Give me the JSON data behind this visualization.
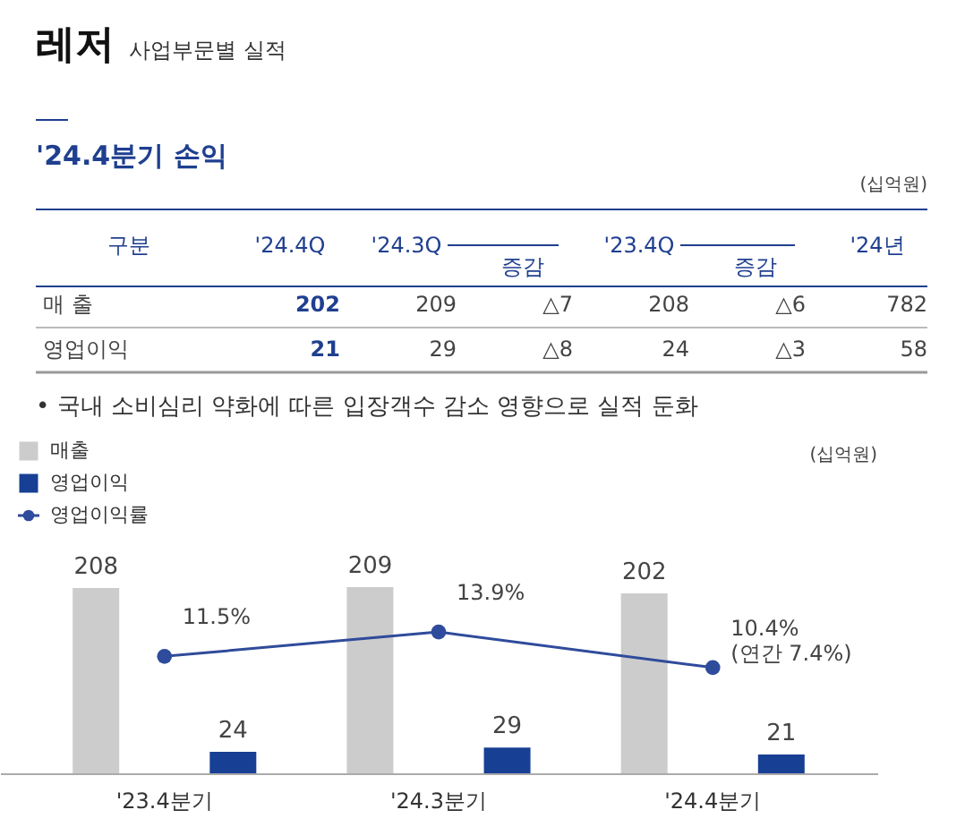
{
  "chart_data": [
    {
      "type": "other",
      "title": "레저",
      "subtitle": "사업부문별 실적",
      "annotations": [
        "'24.4분기 손익",
        "(십억원)",
        "구분",
        "'24.4Q",
        "'24.3Q",
        "증감",
        "'23.4Q",
        "증감",
        "'24년",
        "매   출",
        "202",
        "209",
        "△7",
        "208",
        "△6",
        "782",
        "영업이익",
        "21",
        "29",
        "△8",
        "24",
        "△3",
        "58",
        "• 국내 소비심리 약화에 따른 입장객수 감소 영향으로 실적 둔화"
      ]
    },
    {
      "type": "bar",
      "categories": [
        "'23.4분기",
        "'24.3분기",
        "'24.4분기"
      ],
      "series": [
        {
          "name": "매출",
          "color": "#cccccc",
          "values": [
            208,
            209,
            202
          ]
        },
        {
          "name": "영업이익",
          "color": "#173f94",
          "values": [
            24,
            29,
            21
          ]
        },
        {
          "name": "영업이익률",
          "type": "line",
          "axis": "y2",
          "color": "#2f4b9b",
          "values": [
            11.5,
            13.9,
            10.4
          ],
          "value_labels": [
            "11.5%",
            "13.9%",
            "10.4%\n(연간 7.4%)"
          ]
        }
      ],
      "data_labels": true,
      "marker": "circle",
      "legend": "top left",
      "tick_labels": "x",
      "grid": false,
      "annotations": [
        "(십억원)"
      ]
    }
  ]
}
